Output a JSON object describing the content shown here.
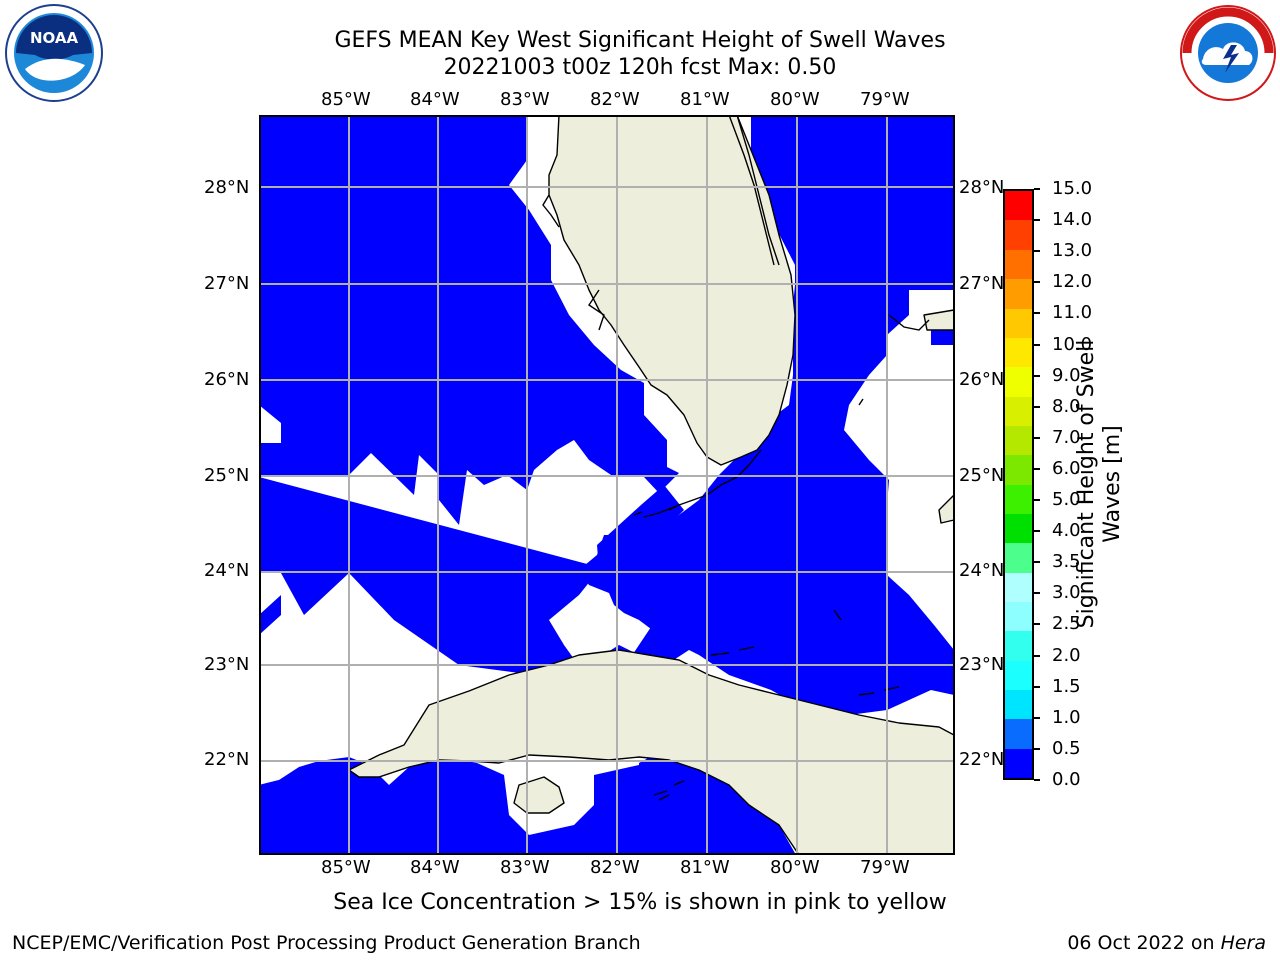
{
  "title": {
    "line1": "GEFS MEAN Key West Significant Height of Swell Waves",
    "line2": "20221003 t00z 120h fcst   Max: 0.50"
  },
  "map": {
    "lon_labels": [
      "85°W",
      "84°W",
      "83°W",
      "82°W",
      "81°W",
      "80°W",
      "79°W"
    ],
    "lat_labels": [
      "28°N",
      "27°N",
      "26°N",
      "25°N",
      "24°N",
      "23°N",
      "22°N"
    ],
    "colors": {
      "ocean_field": "#0000ff",
      "land": "#eeeedc",
      "grid": "#b0b0b0",
      "masked": "#ffffff"
    }
  },
  "colorbar": {
    "label": "Significant Height of Swell Waves [m]",
    "label_line1": "Significant Height of Swell",
    "label_line2": "Waves [m]",
    "ticks": [
      "0.0",
      "0.5",
      "1.0",
      "1.5",
      "2.0",
      "2.5",
      "3.0",
      "3.5",
      "4.0",
      "5.0",
      "6.0",
      "7.0",
      "8.0",
      "9.0",
      "10.0",
      "11.0",
      "12.0",
      "13.0",
      "14.0",
      "15.0"
    ],
    "colors": [
      "#0000ff",
      "#0a6cff",
      "#00e5ff",
      "#1cffff",
      "#33ffee",
      "#8effff",
      "#b0ffff",
      "#4cff8c",
      "#00e000",
      "#3cf000",
      "#7ce800",
      "#b4e800",
      "#d8f000",
      "#f0ff00",
      "#ffe800",
      "#ffc800",
      "#ff9c00",
      "#ff7000",
      "#ff4000",
      "#ff0000"
    ]
  },
  "logos": {
    "left": "NOAA",
    "right": "NATIONAL WEATHER SERVICE"
  },
  "note": "Sea Ice Concentration > 15% is shown in pink to yellow",
  "footer": {
    "left": "NCEP/EMC/Verification Post Processing Product Generation Branch",
    "date": "06 Oct 2022 on ",
    "host": "Hera"
  }
}
